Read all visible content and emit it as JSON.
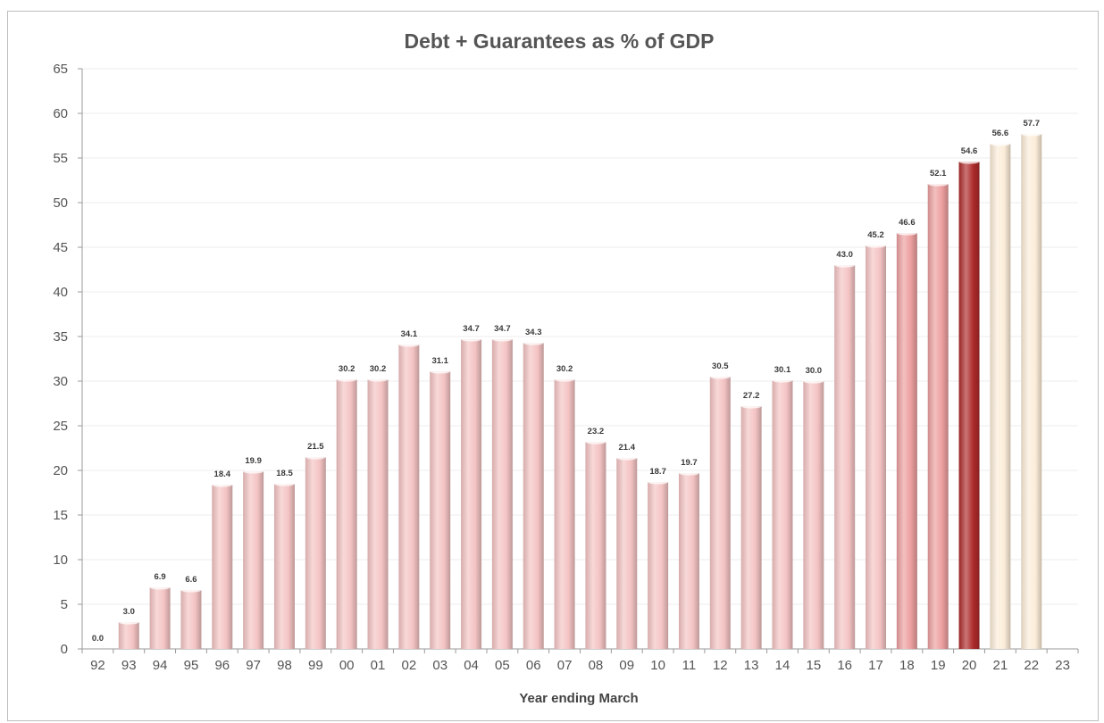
{
  "chart_data": {
    "type": "bar",
    "title": "Debt + Guarantees as % of GDP",
    "xlabel": "Year ending March",
    "ylabel": "",
    "ylim": [
      0,
      65
    ],
    "yticks": [
      0,
      5,
      10,
      15,
      20,
      25,
      30,
      35,
      40,
      45,
      50,
      55,
      60,
      65
    ],
    "grid": true,
    "categories": [
      "92",
      "93",
      "94",
      "95",
      "96",
      "97",
      "98",
      "99",
      "00",
      "01",
      "02",
      "03",
      "04",
      "05",
      "06",
      "07",
      "08",
      "09",
      "10",
      "11",
      "12",
      "13",
      "14",
      "15",
      "16",
      "17",
      "18",
      "19",
      "20",
      "21",
      "22",
      "23"
    ],
    "values": [
      0.0,
      3.0,
      6.9,
      6.6,
      18.4,
      19.9,
      18.5,
      21.5,
      30.2,
      30.2,
      34.1,
      31.1,
      34.7,
      34.7,
      34.3,
      30.2,
      23.2,
      21.4,
      18.7,
      19.7,
      30.5,
      27.2,
      30.1,
      30.0,
      43.0,
      45.2,
      46.6,
      52.1,
      54.6,
      56.6,
      57.7,
      null
    ],
    "data_labels": [
      "0.0",
      "3.0",
      "6.9",
      "6.6",
      "18.4",
      "19.9",
      "18.5",
      "21.5",
      "30.2",
      "30.2",
      "34.1",
      "31.1",
      "34.7",
      "34.7",
      "34.3",
      "30.2",
      "23.2",
      "21.4",
      "18.7",
      "19.7",
      "30.5",
      "27.2",
      "30.1",
      "30.0",
      "43.0",
      "45.2",
      "46.6",
      "52.1",
      "54.6",
      "56.6",
      "57.7",
      ""
    ],
    "colors": {
      "light": "#f4c3c3",
      "medium": "#ec9e9e",
      "dark": "#ad2a2a",
      "projected": "#fbecd8"
    },
    "bar_color_keys": [
      "light",
      "light",
      "light",
      "light",
      "light",
      "light",
      "light",
      "light",
      "light",
      "light",
      "light",
      "light",
      "light",
      "light",
      "light",
      "light",
      "light",
      "light",
      "light",
      "light",
      "light",
      "light",
      "light",
      "light",
      "light",
      "light",
      "medium",
      "medium",
      "dark",
      "projected",
      "projected",
      ""
    ]
  }
}
